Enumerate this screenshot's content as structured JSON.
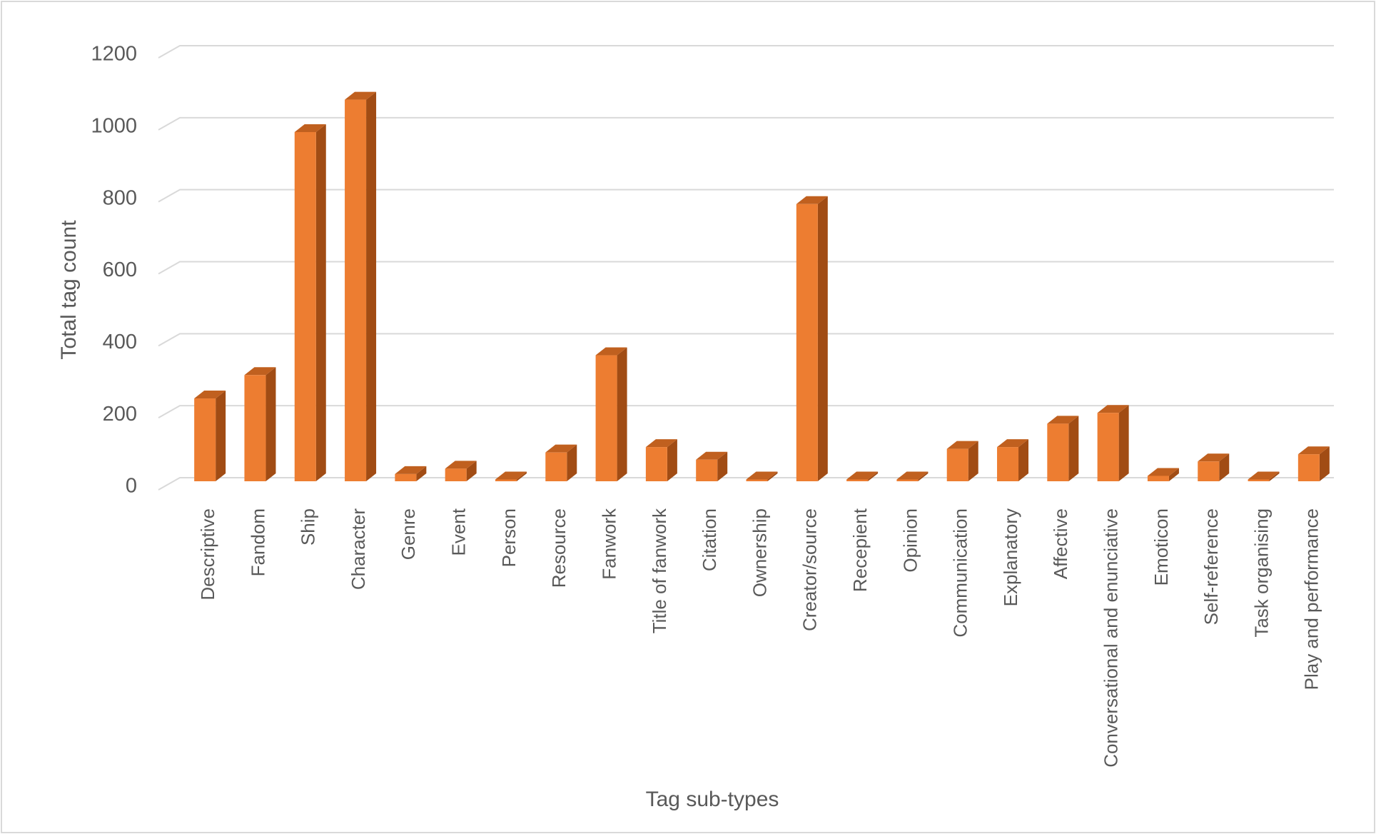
{
  "chart_data": {
    "type": "bar3d",
    "y_label": "Total tag count",
    "x_label": "Tag sub-types",
    "categories": [
      "Descriptive",
      "Fandom",
      "Ship",
      "Character",
      "Genre",
      "Event",
      "Person",
      "Resource",
      "Fanwork",
      "Title of fanwork",
      "Citation",
      "Ownership",
      "Creator/source",
      "Recepient",
      "Opinion",
      "Communication",
      "Explanatory",
      "Affective",
      "Conversational and enunciative",
      "Emoticon",
      "Self-reference",
      "Task organising",
      "Play and performance"
    ],
    "values": [
      230,
      295,
      970,
      1060,
      20,
      35,
      5,
      80,
      350,
      95,
      60,
      5,
      770,
      5,
      5,
      90,
      95,
      160,
      190,
      15,
      55,
      5,
      75
    ],
    "color": "#ed7d31",
    "ylim": [
      0,
      1200
    ],
    "yticks": [
      0,
      200,
      400,
      600,
      800,
      1000,
      1200
    ],
    "grid": true
  }
}
